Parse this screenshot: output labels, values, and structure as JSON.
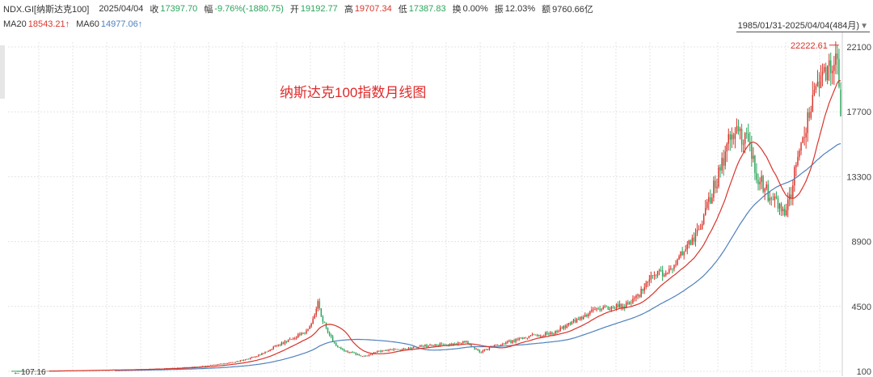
{
  "header": {
    "symbol": "NDX.GI[纳斯达克100]",
    "date": "2025/04/04",
    "close_label": "收",
    "close_value": "17397.70",
    "change_label": "幅",
    "change_value": "-9.76%(-1880.75)",
    "open_label": "开",
    "open_value": "19192.77",
    "high_label": "高",
    "high_value": "19707.34",
    "low_label": "低",
    "low_value": "17387.83",
    "turnover_label": "换",
    "turnover_value": "0.00%",
    "amplitude_label": "振",
    "amplitude_value": "12.03%",
    "amount_label": "额",
    "amount_value": "9760.66亿"
  },
  "ma_bar": {
    "ma20_label": "MA20",
    "ma20_value": "18543.21↑",
    "ma60_label": "MA60",
    "ma60_value": "14977.06↑"
  },
  "range": {
    "text": "1985/01/31-2025/04/04(484月)",
    "arrow_icon": "triangle-down-icon"
  },
  "colors": {
    "up": "#d9342b",
    "down": "#2aa55a",
    "ma20": "#d9342b",
    "ma60": "#4f81bd",
    "grid": "#e4e4e4"
  },
  "chart_data": {
    "type": "candlestick",
    "title": "纳斯达克100指数月线图",
    "x_range": [
      "1985/01/31",
      "2025/04/04"
    ],
    "y_ticks": [
      100,
      4500,
      8900,
      13300,
      17700,
      22100
    ],
    "ylim": [
      100,
      22100
    ],
    "grid": true,
    "annotations": [
      {
        "label": "22222.61",
        "role": "max_high"
      },
      {
        "label": "107.16",
        "role": "min_low"
      }
    ],
    "close_anchors": [
      [
        0,
        110
      ],
      [
        24,
        135
      ],
      [
        48,
        185
      ],
      [
        72,
        230
      ],
      [
        96,
        330
      ],
      [
        108,
        420
      ],
      [
        120,
        550
      ],
      [
        132,
        750
      ],
      [
        144,
        1100
      ],
      [
        156,
        1800
      ],
      [
        168,
        2400
      ],
      [
        174,
        2800
      ],
      [
        178,
        3300
      ],
      [
        180,
        4000
      ],
      [
        182,
        4800
      ],
      [
        184,
        3800
      ],
      [
        188,
        2800
      ],
      [
        192,
        2000
      ],
      [
        198,
        1500
      ],
      [
        204,
        1300
      ],
      [
        210,
        1100
      ],
      [
        216,
        1400
      ],
      [
        228,
        1550
      ],
      [
        240,
        1700
      ],
      [
        252,
        1900
      ],
      [
        264,
        1950
      ],
      [
        272,
        2100
      ],
      [
        276,
        1750
      ],
      [
        280,
        1400
      ],
      [
        288,
        1800
      ],
      [
        300,
        2150
      ],
      [
        312,
        2500
      ],
      [
        324,
        2700
      ],
      [
        336,
        3400
      ],
      [
        348,
        4200
      ],
      [
        360,
        4400
      ],
      [
        372,
        4700
      ],
      [
        384,
        6400
      ],
      [
        396,
        7100
      ],
      [
        408,
        8800
      ],
      [
        414,
        10000
      ],
      [
        420,
        12000
      ],
      [
        432,
        15900
      ],
      [
        441,
        16300
      ],
      [
        450,
        13000
      ],
      [
        459,
        11500
      ],
      [
        466,
        11000
      ],
      [
        474,
        15000
      ],
      [
        480,
        17500
      ],
      [
        486,
        19800
      ],
      [
        492,
        20500
      ],
      [
        495,
        21800
      ],
      [
        497,
        20900
      ],
      [
        499,
        17398
      ]
    ],
    "last_candle": {
      "open": 19192.77,
      "high": 19707.34,
      "low": 17387.83,
      "close": 17397.7
    },
    "ma20_last": 18543.21,
    "ma60_last": 14977.06
  }
}
